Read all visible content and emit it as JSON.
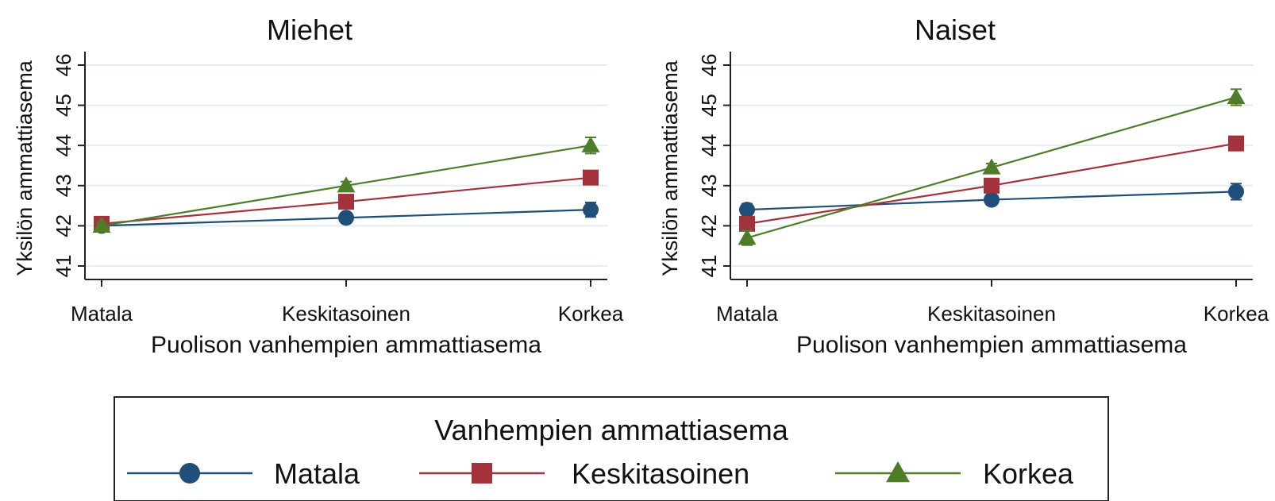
{
  "chart_data": [
    {
      "type": "line",
      "title": "Miehet",
      "xlabel": "Puolison vanhempien ammattiasema",
      "ylabel": "Yksilön ammattiasema",
      "categories": [
        "Matala",
        "Keskitasoinen",
        "Korkea"
      ],
      "ylim": [
        41,
        46
      ],
      "yticks": [
        "41",
        "42",
        "43",
        "44",
        "45",
        "46"
      ],
      "grid": true,
      "series": [
        {
          "name": "Matala",
          "values": [
            42.0,
            42.2,
            42.4
          ],
          "err": [
            0.1,
            0.12,
            0.18
          ],
          "color": "#1f4e79",
          "marker": "circle"
        },
        {
          "name": "Keskitasoinen",
          "values": [
            42.05,
            42.6,
            43.2
          ],
          "err": [
            0.08,
            0.1,
            0.12
          ],
          "color": "#a3323c",
          "marker": "square"
        },
        {
          "name": "Korkea",
          "values": [
            42.0,
            43.0,
            44.0
          ],
          "err": [
            0.08,
            0.1,
            0.2
          ],
          "color": "#4e7d2a",
          "marker": "triangle"
        }
      ]
    },
    {
      "type": "line",
      "title": "Naiset",
      "xlabel": "Puolison vanhempien ammattiasema",
      "ylabel": "Yksilön ammattiasema",
      "categories": [
        "Matala",
        "Keskitasoinen",
        "Korkea"
      ],
      "ylim": [
        41,
        46
      ],
      "yticks": [
        "41",
        "42",
        "43",
        "44",
        "45",
        "46"
      ],
      "grid": true,
      "series": [
        {
          "name": "Matala",
          "values": [
            42.4,
            42.65,
            42.85
          ],
          "err": [
            0.15,
            0.1,
            0.2
          ],
          "color": "#1f4e79",
          "marker": "circle"
        },
        {
          "name": "Keskitasoinen",
          "values": [
            42.05,
            43.0,
            44.05
          ],
          "err": [
            0.12,
            0.1,
            0.1
          ],
          "color": "#a3323c",
          "marker": "square"
        },
        {
          "name": "Korkea",
          "values": [
            41.7,
            43.45,
            45.2
          ],
          "err": [
            0.18,
            0.1,
            0.2
          ],
          "color": "#4e7d2a",
          "marker": "triangle"
        }
      ]
    }
  ],
  "legend": {
    "title": "Vanhempien ammattiasema",
    "position": "bottom",
    "items": [
      {
        "label": "Matala",
        "color": "#1f4e79",
        "marker": "circle"
      },
      {
        "label": "Keskitasoinen",
        "color": "#a3323c",
        "marker": "square"
      },
      {
        "label": "Korkea",
        "color": "#4e7d2a",
        "marker": "triangle"
      }
    ]
  }
}
